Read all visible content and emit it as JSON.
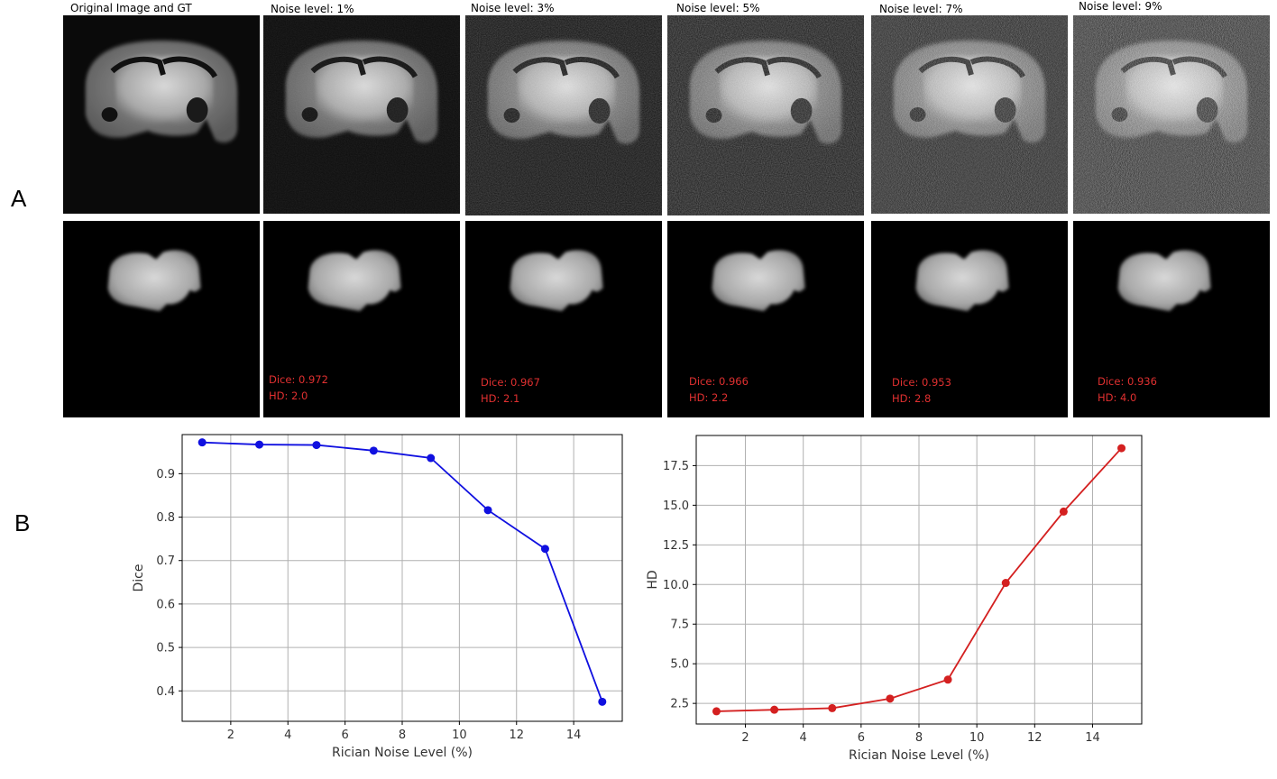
{
  "panels": {
    "a_label": "A",
    "b_label": "B"
  },
  "columns": [
    {
      "title": "Original Image and GT",
      "dice": "",
      "hd": ""
    },
    {
      "title": "Noise level: 1%",
      "dice": "Dice: 0.972",
      "hd": "HD: 2.0"
    },
    {
      "title": "Noise level: 3%",
      "dice": "Dice: 0.967",
      "hd": "HD: 2.1"
    },
    {
      "title": "Noise level: 5%",
      "dice": "Dice: 0.966",
      "hd": "HD: 2.2"
    },
    {
      "title": "Noise level: 7%",
      "dice": "Dice: 0.953",
      "hd": "HD: 2.8"
    },
    {
      "title": "Noise level: 9%",
      "dice": "Dice: 0.936",
      "hd": "HD: 4.0"
    }
  ],
  "colors": {
    "dice_series": "#1010e0",
    "hd_series": "#d42020",
    "metric_text": "#e03030"
  },
  "chart_data": [
    {
      "type": "line",
      "xlabel": "Rician Noise Level (%)",
      "ylabel": "Dice",
      "x": [
        1,
        3,
        5,
        7,
        9,
        11,
        13,
        15
      ],
      "values": [
        0.972,
        0.967,
        0.966,
        0.953,
        0.936,
        0.816,
        0.727,
        0.375
      ],
      "xticks": [
        2,
        4,
        6,
        8,
        10,
        12,
        14
      ],
      "yticks": [
        0.4,
        0.5,
        0.6,
        0.7,
        0.8,
        0.9
      ],
      "xlim": [
        0.3,
        15.7
      ],
      "ylim": [
        0.33,
        0.99
      ],
      "grid": true,
      "color": "#1010e0"
    },
    {
      "type": "line",
      "xlabel": "Rician Noise Level (%)",
      "ylabel": "HD",
      "x": [
        1,
        3,
        5,
        7,
        9,
        11,
        13,
        15
      ],
      "values": [
        2.0,
        2.1,
        2.2,
        2.8,
        4.0,
        10.1,
        14.6,
        18.6
      ],
      "xticks": [
        2,
        4,
        6,
        8,
        10,
        12,
        14
      ],
      "yticks": [
        2.5,
        5.0,
        7.5,
        10.0,
        12.5,
        15.0,
        17.5
      ],
      "xlim": [
        0.3,
        15.7
      ],
      "ylim": [
        1.2,
        19.4
      ],
      "grid": true,
      "color": "#d42020"
    }
  ]
}
